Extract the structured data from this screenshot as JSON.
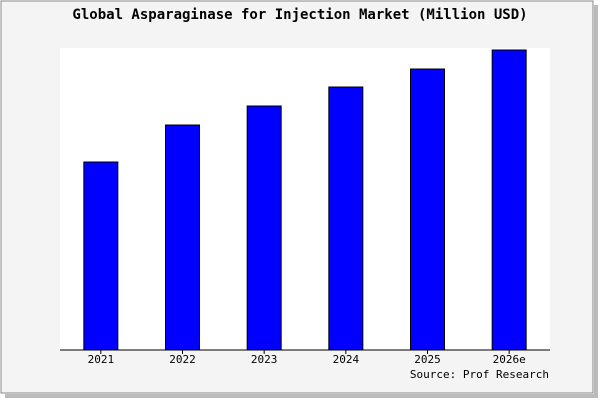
{
  "chart_data": {
    "type": "bar",
    "title": "Global Asparaginase for Injection Market (Million USD)",
    "categories": [
      "2021",
      "2022",
      "2023",
      "2024",
      "2025",
      "2026e"
    ],
    "values": [
      188,
      225,
      244,
      263,
      281,
      300
    ],
    "color": "#0000ff",
    "ylim": [
      0,
      302
    ],
    "source": "Source: Prof Research"
  }
}
